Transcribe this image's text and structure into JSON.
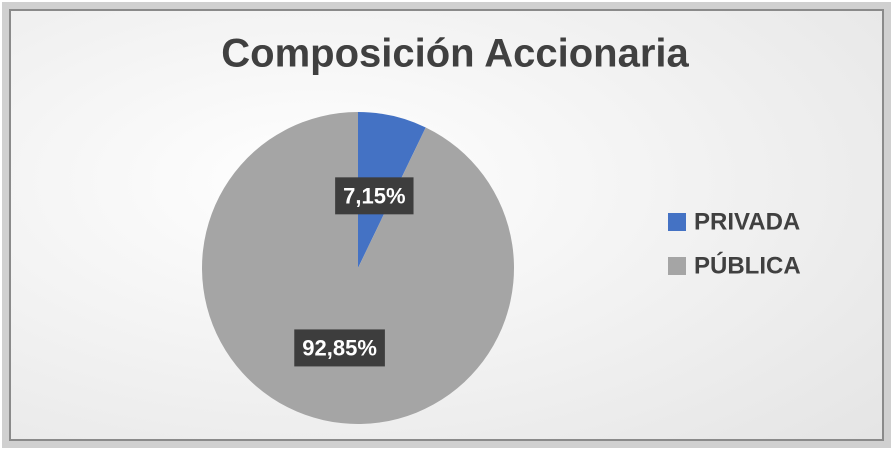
{
  "chart_data": {
    "type": "pie",
    "title": "Composición Accionaria",
    "categories": [
      "PRIVADA",
      "PÚBLICA"
    ],
    "values": [
      7.15,
      92.85
    ],
    "value_labels": [
      "7,15%",
      "92,85%"
    ],
    "colors": [
      "#4472c4",
      "#a5a5a5"
    ],
    "legend": "right"
  }
}
